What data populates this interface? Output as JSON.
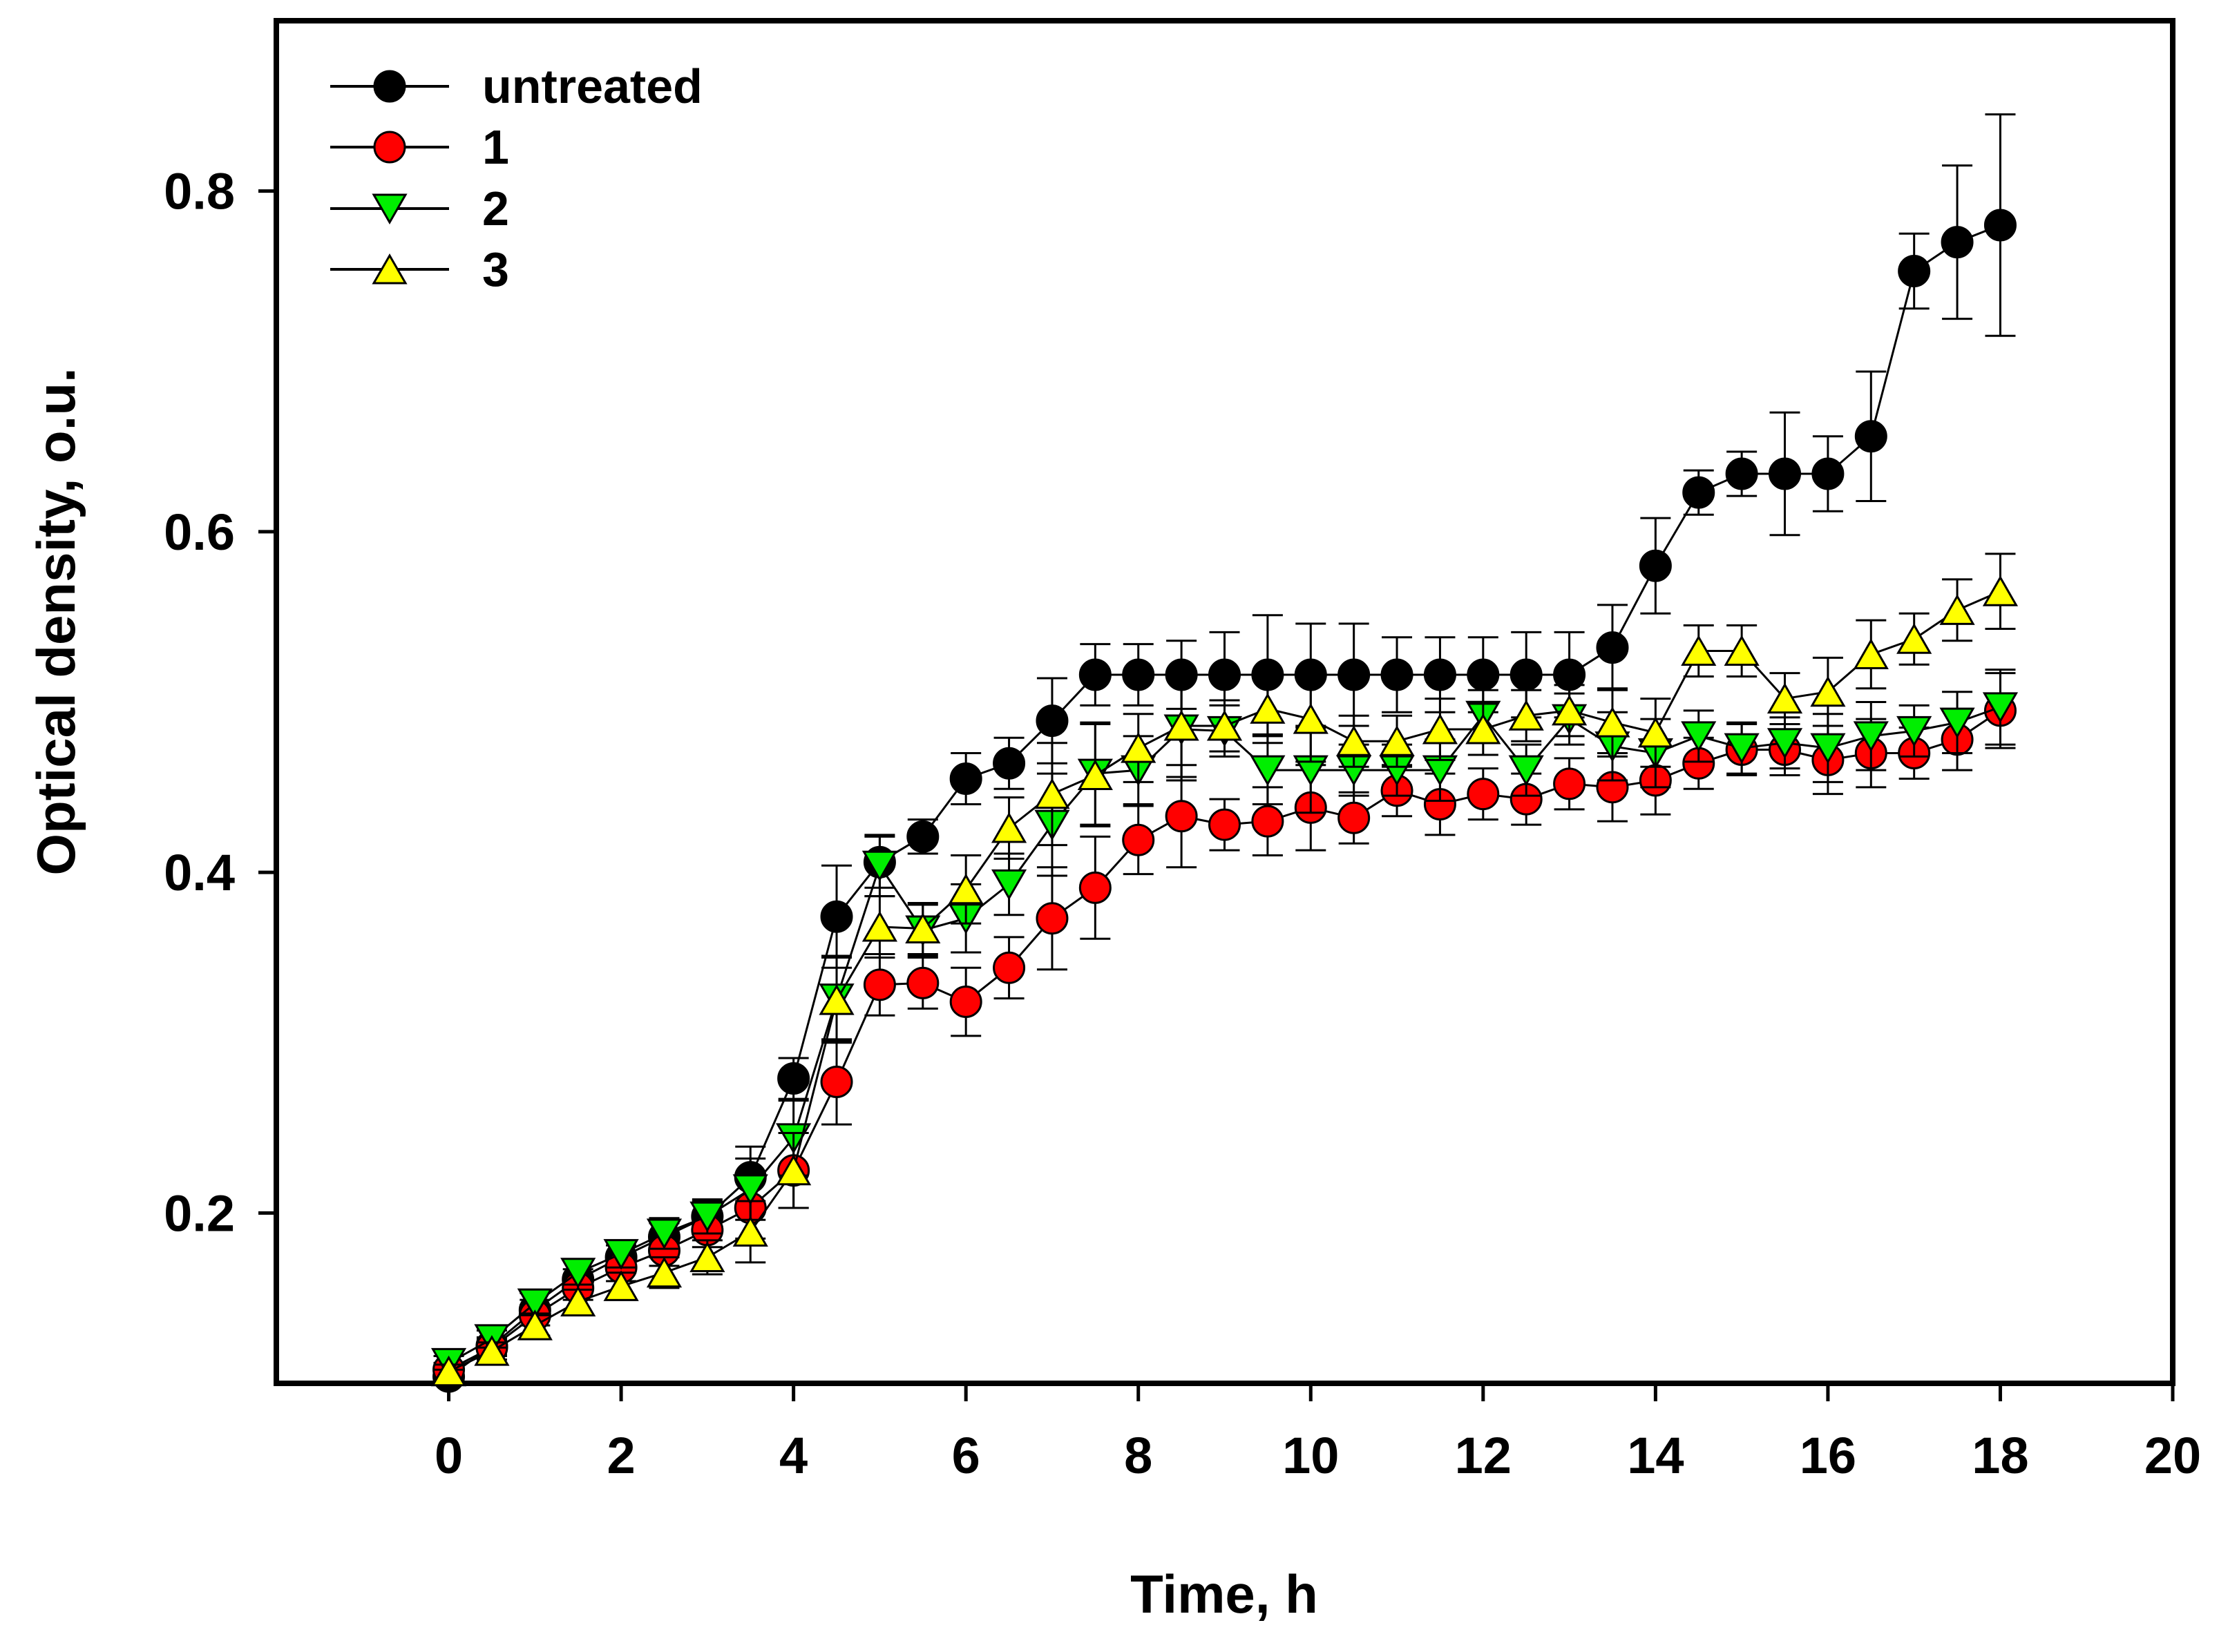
{
  "chart_data": {
    "type": "line",
    "title": "",
    "xlabel": "Time, h",
    "ylabel": "Optical density, o.u.",
    "xlim": [
      -2,
      20
    ],
    "ylim": [
      0.1,
      0.9
    ],
    "xticks": [
      0,
      2,
      4,
      6,
      8,
      10,
      12,
      14,
      16,
      18,
      20
    ],
    "xtick_labels": [
      "0",
      "2",
      "4",
      "6",
      "8",
      "10",
      "12",
      "14",
      "16",
      "18",
      "20"
    ],
    "yticks": [
      0.2,
      0.4,
      0.6,
      0.8
    ],
    "ytick_labels": [
      "0.2",
      "0.4",
      "0.6",
      "0.8"
    ],
    "grid": false,
    "legend_position": "top-left",
    "x": [
      0,
      0.5,
      1,
      1.5,
      2,
      2.5,
      3,
      3.5,
      4,
      4.5,
      5,
      5.5,
      6,
      6.5,
      7,
      7.5,
      8,
      8.5,
      9,
      9.5,
      10,
      10.5,
      11,
      11.5,
      12,
      12.5,
      13,
      13.5,
      14,
      14.5,
      15,
      15.5,
      16,
      16.5,
      17,
      17.5,
      18
    ],
    "series": [
      {
        "name": "untreated",
        "marker": "circle",
        "color": "#000000",
        "values": [
          0.104,
          0.122,
          0.143,
          0.161,
          0.174,
          0.186,
          0.198,
          0.221,
          0.279,
          0.374,
          0.406,
          0.421,
          0.455,
          0.464,
          0.489,
          0.516,
          0.516,
          0.516,
          0.516,
          0.516,
          0.516,
          0.516,
          0.516,
          0.516,
          0.516,
          0.516,
          0.516,
          0.532,
          0.58,
          0.623,
          0.634,
          0.634,
          0.634,
          0.656,
          0.753,
          0.77,
          0.78
        ],
        "errors": [
          0.004,
          0.005,
          0.006,
          0.006,
          0.007,
          0.008,
          0.009,
          0.018,
          0.012,
          0.03,
          0.015,
          0.01,
          0.015,
          0.015,
          0.025,
          0.018,
          0.018,
          0.02,
          0.025,
          0.035,
          0.03,
          0.03,
          0.022,
          0.022,
          0.022,
          0.025,
          0.025,
          0.025,
          0.028,
          0.013,
          0.013,
          0.036,
          0.022,
          0.038,
          0.022,
          0.045,
          0.065
        ]
      },
      {
        "name": "1",
        "marker": "circle",
        "color": "#ff0000",
        "values": [
          0.108,
          0.121,
          0.14,
          0.156,
          0.168,
          0.178,
          0.19,
          0.203,
          0.225,
          0.277,
          0.334,
          0.335,
          0.324,
          0.344,
          0.373,
          0.391,
          0.419,
          0.433,
          0.428,
          0.43,
          0.438,
          0.432,
          0.448,
          0.44,
          0.446,
          0.443,
          0.452,
          0.45,
          0.454,
          0.464,
          0.472,
          0.472,
          0.466,
          0.47,
          0.47,
          0.478,
          0.495
        ]
      },
      {
        "name": "2",
        "marker": "triangle-down",
        "color": "#00ee00",
        "values": [
          0.112,
          0.126,
          0.147,
          0.165,
          0.176,
          0.188,
          0.198,
          0.214,
          0.244,
          0.326,
          0.404,
          0.366,
          0.373,
          0.393,
          0.428,
          0.458,
          0.46,
          0.484,
          0.483,
          0.46,
          0.46,
          0.46,
          0.46,
          0.46,
          0.492,
          0.46,
          0.49,
          0.474,
          0.47,
          0.48,
          0.473,
          0.476,
          0.473,
          0.48,
          0.483,
          0.488,
          0.497
        ]
      },
      {
        "name": "3",
        "marker": "triangle-up",
        "color": "#ffff00",
        "values": [
          0.107,
          0.119,
          0.134,
          0.148,
          0.157,
          0.165,
          0.174,
          0.189,
          0.225,
          0.325,
          0.368,
          0.367,
          0.39,
          0.426,
          0.446,
          0.457,
          0.473,
          0.486,
          0.486,
          0.496,
          0.49,
          0.477,
          0.477,
          0.484,
          0.484,
          0.492,
          0.495,
          0.488,
          0.482,
          0.53,
          0.53,
          0.502,
          0.506,
          0.528,
          0.537,
          0.554,
          0.565
        ]
      }
    ]
  }
}
